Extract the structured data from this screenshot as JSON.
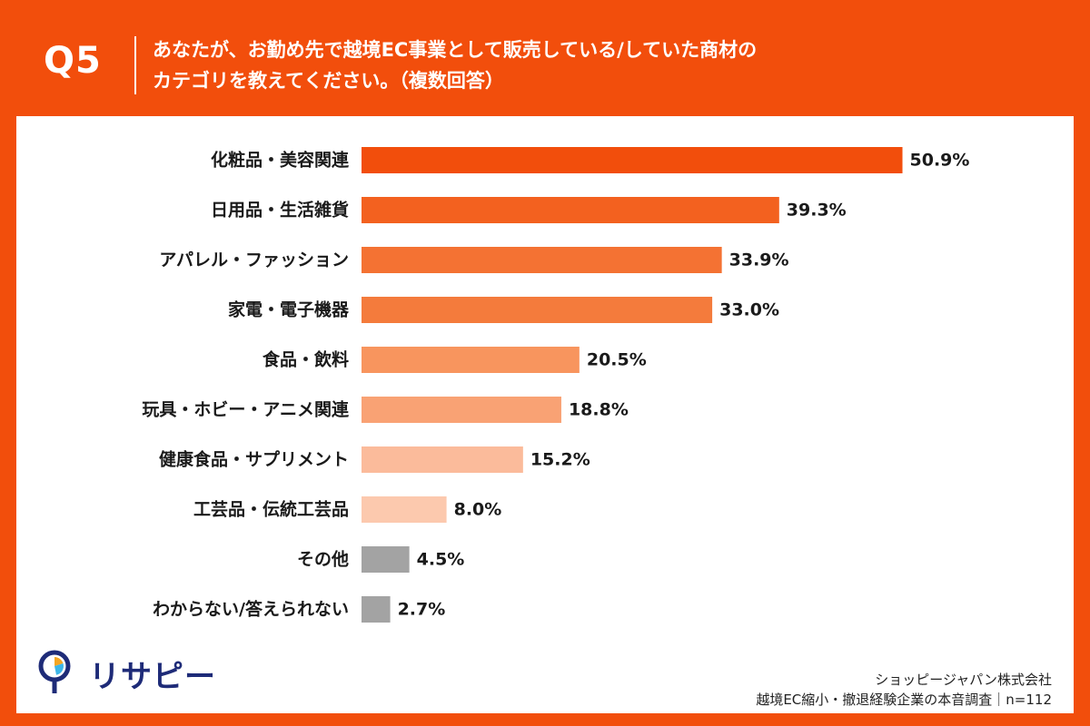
{
  "header": {
    "question_number": "Q5",
    "title_line1": "あなたが、お勤め先で越境EC事業として販売している/していた商材の",
    "title_line2": "カテゴリを教えてください。（複数回答）"
  },
  "chart_data": {
    "type": "bar",
    "orientation": "horizontal",
    "categories": [
      "化粧品・美容関連",
      "日用品・生活雑貨",
      "アパレル・ファッション",
      "家電・電子機器",
      "食品・飲料",
      "玩具・ホビー・アニメ関連",
      "健康食品・サプリメント",
      "工芸品・伝統工芸品",
      "その他",
      "わからない/答えられない"
    ],
    "values": [
      50.9,
      39.3,
      33.9,
      33.0,
      20.5,
      18.8,
      15.2,
      8.0,
      4.5,
      2.7
    ],
    "value_labels": [
      "50.9%",
      "39.3%",
      "33.9%",
      "33.0%",
      "20.5%",
      "18.8%",
      "15.2%",
      "8.0%",
      "4.5%",
      "2.7%"
    ],
    "colors": [
      "#f24e0c",
      "#f3611f",
      "#f47233",
      "#f47b3c",
      "#f8955e",
      "#f9a274",
      "#fbbb9b",
      "#fcc9ae",
      "#a3a3a3",
      "#a3a3a3"
    ],
    "xlim": [
      0,
      55
    ],
    "grid": false,
    "legend": "none"
  },
  "footer": {
    "logo_text": "リサピー",
    "logo_colors": {
      "ring": "#1e2b78",
      "slice1": "#f5a623",
      "slice2": "#3db6e8"
    },
    "source_line1": "ショッピージャパン株式会社",
    "source_line2": "越境EC縮小・撤退経験企業の本音調査｜n=112"
  }
}
